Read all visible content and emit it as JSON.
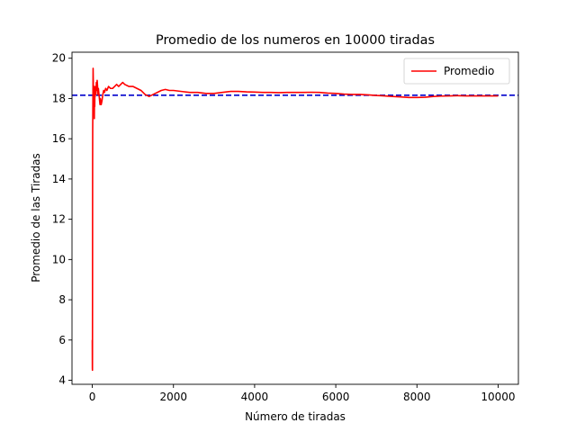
{
  "chart_data": {
    "type": "line",
    "title": "Promedio de los numeros en 10000 tiradas",
    "xlabel": "Número de tiradas",
    "ylabel": "Promedio de las Tiradas",
    "xlim": [
      -500,
      10500
    ],
    "ylim": [
      3.8,
      20.3
    ],
    "xticks": [
      0,
      2000,
      4000,
      6000,
      8000,
      10000
    ],
    "yticks": [
      4,
      6,
      8,
      10,
      12,
      14,
      16,
      18,
      20
    ],
    "grid": false,
    "legend": {
      "position": "top-right"
    },
    "series": [
      {
        "name": "Promedio",
        "color": "#ff0000",
        "style": "solid",
        "x": [
          0,
          2,
          4,
          6,
          8,
          10,
          13,
          16,
          20,
          25,
          30,
          35,
          40,
          45,
          50,
          55,
          60,
          65,
          70,
          80,
          90,
          100,
          110,
          120,
          130,
          140,
          150,
          160,
          170,
          180,
          190,
          200,
          220,
          240,
          260,
          280,
          300,
          330,
          360,
          400,
          450,
          500,
          550,
          600,
          650,
          700,
          750,
          800,
          900,
          1000,
          1100,
          1200,
          1300,
          1400,
          1500,
          1600,
          1700,
          1800,
          1900,
          2000,
          2200,
          2400,
          2600,
          2800,
          3000,
          3200,
          3400,
          3600,
          3800,
          4000,
          4200,
          4400,
          4600,
          4800,
          5000,
          5200,
          5400,
          5600,
          5800,
          6000,
          6200,
          6400,
          6600,
          6800,
          7000,
          7200,
          7400,
          7600,
          7800,
          8000,
          8200,
          8400,
          8600,
          8800,
          9000,
          9200,
          9400,
          9600,
          9800,
          10000
        ],
        "y": [
          6.0,
          4.6,
          4.5,
          9.0,
          14.8,
          16.5,
          17.3,
          18.2,
          19.5,
          18.8,
          17.6,
          18.4,
          17.9,
          18.6,
          17.0,
          18.3,
          17.6,
          18.5,
          18.1,
          18.6,
          18.2,
          18.8,
          18.4,
          18.9,
          18.6,
          18.2,
          18.5,
          18.3,
          18.1,
          17.9,
          17.7,
          18.0,
          17.7,
          17.9,
          18.2,
          18.4,
          18.3,
          18.5,
          18.4,
          18.6,
          18.5,
          18.5,
          18.6,
          18.7,
          18.6,
          18.7,
          18.8,
          18.7,
          18.6,
          18.6,
          18.5,
          18.4,
          18.2,
          18.1,
          18.2,
          18.3,
          18.4,
          18.45,
          18.4,
          18.4,
          18.35,
          18.3,
          18.3,
          18.25,
          18.25,
          18.3,
          18.35,
          18.35,
          18.33,
          18.32,
          18.3,
          18.3,
          18.29,
          18.3,
          18.3,
          18.3,
          18.31,
          18.3,
          18.27,
          18.25,
          18.22,
          18.2,
          18.2,
          18.18,
          18.15,
          18.13,
          18.1,
          18.08,
          18.05,
          18.05,
          18.06,
          18.1,
          18.12,
          18.13,
          18.14,
          18.13,
          18.13,
          18.13,
          18.13,
          18.13
        ]
      }
    ],
    "reference_line": {
      "y": 18.16,
      "color": "#0000cc",
      "style": "dashed"
    }
  }
}
